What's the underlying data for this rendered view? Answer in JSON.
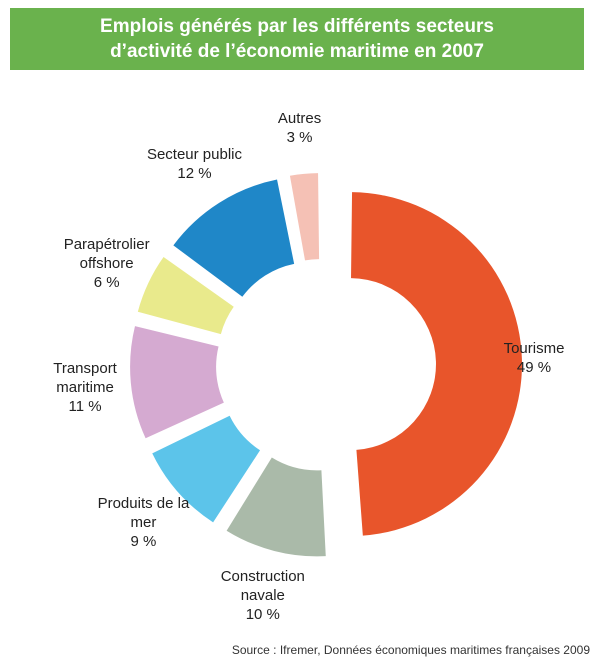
{
  "chart_data": {
    "type": "donut",
    "title": "Emplois générés par les différents secteurs d’activité de l’économie maritime en 2007",
    "categories": [
      "Tourisme",
      "Construction navale",
      "Produits de la mer",
      "Transport maritime",
      "Parapétrolier offshore",
      "Secteur public",
      "Autres"
    ],
    "values": [
      49,
      10,
      9,
      11,
      6,
      12,
      3
    ],
    "value_labels": [
      "49 %",
      "10 %",
      "9 %",
      "11 %",
      "6 %",
      "12 %",
      "3 %"
    ],
    "colors": [
      "#e8552b",
      "#aabaa9",
      "#5cc4ea",
      "#d5aad1",
      "#e9ea8c",
      "#1f87c8",
      "#f5c1b5"
    ],
    "source": "Source : Ifremer, Données économiques maritimes françaises 2009"
  }
}
